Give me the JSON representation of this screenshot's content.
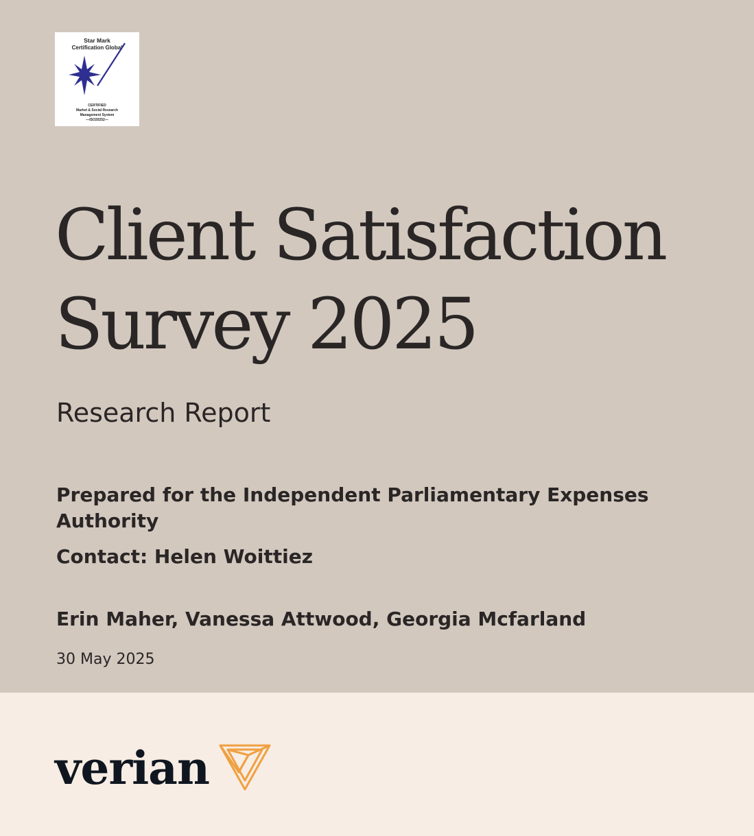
{
  "certification": {
    "name_line1": "Star Mark",
    "name_line2": "Certification Global",
    "caption_line1": "CERTIFIED",
    "caption_line2": "Market & Social Research",
    "caption_line3": "Management System",
    "caption_line4": "—ISO20252—",
    "star_color": "#2e2f91"
  },
  "report": {
    "title_line1": "Client Satisfaction",
    "title_line2": "Survey 2025",
    "subtitle": "Research Report",
    "prepared_for": "Prepared for the Independent Parliamentary Expenses Authority",
    "contact": "Contact: Helen Woittiez",
    "authors": "Erin Maher, Vanessa Attwood, Georgia Mcfarland",
    "date": "30 May 2025"
  },
  "brand": {
    "wordmark": "verian",
    "logo_icon": "triangle-knot-icon",
    "accent_color": "#f0a040"
  },
  "colors": {
    "top_background": "#d2c8be",
    "bottom_background": "#f7ede4",
    "text": "#2a2626"
  }
}
